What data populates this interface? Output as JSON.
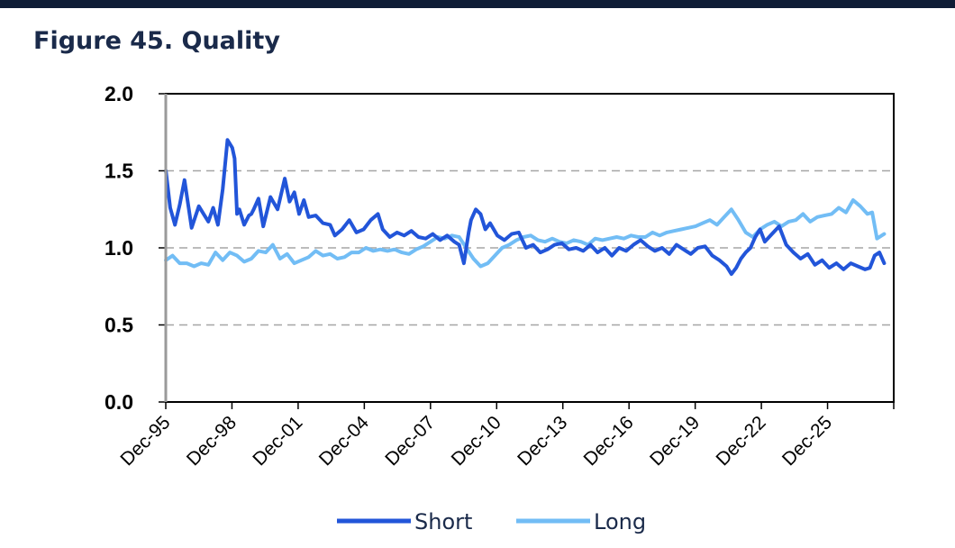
{
  "figure_title": "Figure 45. Quality",
  "colors": {
    "top_bar": "#0f1d36",
    "title": "#1a2a4a",
    "short": "#2255d9",
    "long": "#72bdf5",
    "grid": "#a6a6a6"
  },
  "chart_data": {
    "type": "line",
    "title": "Figure 45. Quality",
    "xlabel": "",
    "ylabel": "",
    "ylim": [
      0.0,
      2.0
    ],
    "yticks": [
      "0.0",
      "0.5",
      "1.0",
      "1.5",
      "2.0"
    ],
    "xlim": [
      1995.917,
      2026.4
    ],
    "xticks": [
      "Dec-95",
      "Dec-98",
      "Dec-01",
      "Dec-04",
      "Dec-07",
      "Dec-10",
      "Dec-13",
      "Dec-16",
      "Dec-19",
      "Dec-22",
      "Dec-25"
    ],
    "grid": "horizontal dashed",
    "legend": "bottom",
    "series": [
      {
        "name": "Short",
        "x": [
          1995.92,
          1996.1,
          1996.3,
          1996.5,
          1996.7,
          1997.0,
          1997.3,
          1997.5,
          1997.7,
          1997.9,
          1998.1,
          1998.3,
          1998.5,
          1998.7,
          1998.8,
          1998.9,
          1999.0,
          1999.2,
          1999.4,
          1999.5,
          1999.6,
          1999.8,
          2000.0,
          2000.3,
          2000.6,
          2000.9,
          2001.1,
          2001.3,
          2001.5,
          2001.7,
          2001.9,
          2002.2,
          2002.5,
          2002.8,
          2003.0,
          2003.3,
          2003.6,
          2003.9,
          2004.2,
          2004.5,
          2004.8,
          2005.0,
          2005.3,
          2005.6,
          2005.9,
          2006.2,
          2006.5,
          2006.8,
          2007.1,
          2007.4,
          2007.7,
          2008.0,
          2008.2,
          2008.4,
          2008.6,
          2008.7,
          2008.9,
          2009.1,
          2009.3,
          2009.5,
          2009.8,
          2010.1,
          2010.4,
          2010.7,
          2011.0,
          2011.3,
          2011.6,
          2011.9,
          2012.2,
          2012.5,
          2012.8,
          2013.1,
          2013.4,
          2013.7,
          2014.0,
          2014.3,
          2014.6,
          2014.9,
          2015.2,
          2015.5,
          2015.8,
          2016.1,
          2016.4,
          2016.7,
          2017.0,
          2017.3,
          2017.6,
          2017.9,
          2018.2,
          2018.5,
          2018.8,
          2019.1,
          2019.4,
          2019.6,
          2019.8,
          2020.0,
          2020.2,
          2020.4,
          2020.6,
          2020.8,
          2021.0,
          2021.3,
          2021.6,
          2021.9,
          2022.2,
          2022.5,
          2022.8,
          2023.1,
          2023.4,
          2023.7,
          2024.0,
          2024.3,
          2024.6,
          2024.9,
          2025.2,
          2025.4,
          2025.6,
          2025.8,
          2026.0
        ],
        "values": [
          1.5,
          1.26,
          1.15,
          1.28,
          1.44,
          1.13,
          1.27,
          1.22,
          1.17,
          1.26,
          1.15,
          1.38,
          1.7,
          1.65,
          1.58,
          1.22,
          1.25,
          1.15,
          1.21,
          1.22,
          1.25,
          1.32,
          1.14,
          1.33,
          1.25,
          1.45,
          1.3,
          1.36,
          1.22,
          1.31,
          1.2,
          1.21,
          1.16,
          1.15,
          1.08,
          1.12,
          1.18,
          1.1,
          1.12,
          1.18,
          1.22,
          1.12,
          1.07,
          1.1,
          1.08,
          1.11,
          1.07,
          1.06,
          1.09,
          1.05,
          1.08,
          1.04,
          1.02,
          0.9,
          1.1,
          1.18,
          1.25,
          1.22,
          1.12,
          1.16,
          1.08,
          1.05,
          1.09,
          1.1,
          1.0,
          1.02,
          0.97,
          0.99,
          1.02,
          1.03,
          0.99,
          1.0,
          0.98,
          1.02,
          0.97,
          1.0,
          0.95,
          1.0,
          0.98,
          1.02,
          1.05,
          1.01,
          0.98,
          1.0,
          0.96,
          1.02,
          0.99,
          0.96,
          1.0,
          1.01,
          0.95,
          0.92,
          0.88,
          0.83,
          0.87,
          0.93,
          0.97,
          1.0,
          1.07,
          1.12,
          1.04,
          1.09,
          1.14,
          1.02,
          0.97,
          0.93,
          0.96,
          0.89,
          0.92,
          0.87,
          0.9,
          0.86,
          0.9,
          0.88,
          0.86,
          0.87,
          0.95,
          0.97,
          0.9
        ]
      },
      {
        "name": "Long",
        "x": [
          1995.92,
          1996.2,
          1996.5,
          1996.8,
          1997.1,
          1997.4,
          1997.7,
          1998.0,
          1998.3,
          1998.6,
          1998.9,
          1999.2,
          1999.5,
          1999.8,
          2000.1,
          2000.4,
          2000.7,
          2001.0,
          2001.3,
          2001.6,
          2001.9,
          2002.2,
          2002.5,
          2002.8,
          2003.1,
          2003.4,
          2003.7,
          2004.0,
          2004.3,
          2004.6,
          2004.9,
          2005.2,
          2005.5,
          2005.8,
          2006.1,
          2006.4,
          2006.7,
          2007.0,
          2007.3,
          2007.6,
          2007.9,
          2008.2,
          2008.5,
          2008.8,
          2009.1,
          2009.4,
          2009.7,
          2010.0,
          2010.3,
          2010.6,
          2010.9,
          2011.2,
          2011.5,
          2011.8,
          2012.1,
          2012.4,
          2012.7,
          2013.0,
          2013.3,
          2013.6,
          2013.9,
          2014.2,
          2014.5,
          2014.8,
          2015.1,
          2015.4,
          2015.7,
          2016.0,
          2016.3,
          2016.6,
          2016.9,
          2017.2,
          2017.5,
          2017.8,
          2018.1,
          2018.4,
          2018.7,
          2019.0,
          2019.3,
          2019.6,
          2019.9,
          2020.2,
          2020.5,
          2020.8,
          2021.1,
          2021.4,
          2021.7,
          2022.0,
          2022.3,
          2022.6,
          2022.9,
          2023.2,
          2023.5,
          2023.8,
          2024.1,
          2024.4,
          2024.7,
          2025.0,
          2025.3,
          2025.5,
          2025.7,
          2026.0
        ],
        "values": [
          0.92,
          0.95,
          0.9,
          0.9,
          0.88,
          0.9,
          0.89,
          0.97,
          0.92,
          0.97,
          0.95,
          0.91,
          0.93,
          0.98,
          0.97,
          1.02,
          0.93,
          0.96,
          0.9,
          0.92,
          0.94,
          0.98,
          0.95,
          0.96,
          0.93,
          0.94,
          0.97,
          0.97,
          1.0,
          0.98,
          0.99,
          0.98,
          0.99,
          0.97,
          0.96,
          0.99,
          1.01,
          1.04,
          1.07,
          1.06,
          1.08,
          1.07,
          1.0,
          0.93,
          0.88,
          0.9,
          0.95,
          1.0,
          1.02,
          1.05,
          1.07,
          1.08,
          1.05,
          1.04,
          1.06,
          1.04,
          1.03,
          1.05,
          1.04,
          1.02,
          1.06,
          1.05,
          1.06,
          1.07,
          1.06,
          1.08,
          1.07,
          1.07,
          1.1,
          1.08,
          1.1,
          1.11,
          1.12,
          1.13,
          1.14,
          1.16,
          1.18,
          1.15,
          1.2,
          1.25,
          1.18,
          1.1,
          1.07,
          1.12,
          1.15,
          1.17,
          1.14,
          1.17,
          1.18,
          1.22,
          1.17,
          1.2,
          1.21,
          1.22,
          1.26,
          1.23,
          1.31,
          1.27,
          1.22,
          1.23,
          1.06,
          1.09
        ]
      }
    ]
  }
}
